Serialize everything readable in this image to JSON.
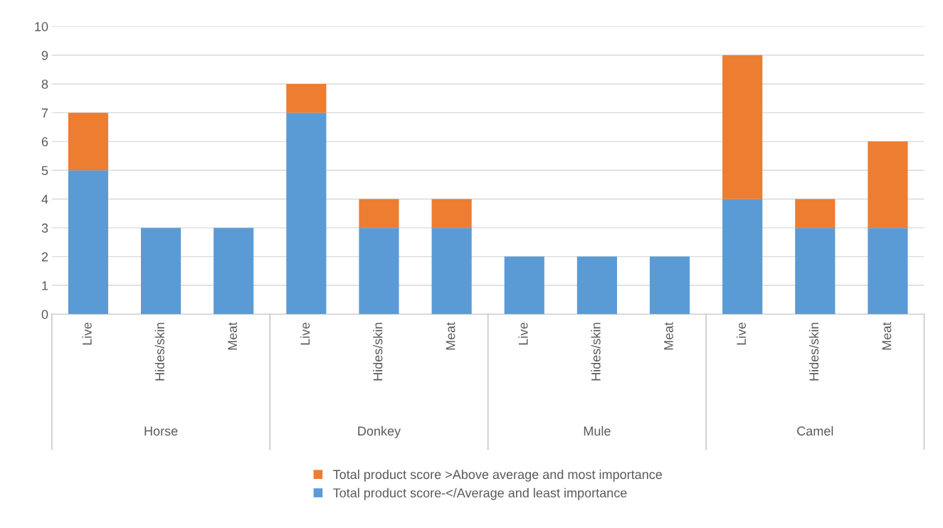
{
  "chart_data": {
    "type": "bar",
    "stacked": true,
    "categories": [
      "Live",
      "Hides/skin",
      "Meat",
      "Live",
      "Hides/skin",
      "Meat",
      "Live",
      "Hides/skin",
      "Meat",
      "Live",
      "Hides/skin",
      "Meat"
    ],
    "series": [
      {
        "name": "Total product score-</Average and least importance",
        "color": "#5b9bd5",
        "values": [
          5,
          3,
          3,
          7,
          3,
          3,
          2,
          2,
          2,
          4,
          3,
          3
        ]
      },
      {
        "name": "Total product score >Above average and most importance",
        "color": "#ed7d31",
        "values": [
          2,
          0,
          0,
          1,
          1,
          1,
          0,
          0,
          0,
          5,
          1,
          3
        ]
      }
    ],
    "annotations": [
      "Horse",
      "Donkey",
      "Mule",
      "Camel"
    ],
    "ylim": [
      0,
      10
    ],
    "yticks": [
      0,
      1,
      2,
      3,
      4,
      5,
      6,
      7,
      8,
      9,
      10
    ],
    "grid": "y",
    "legend": "bottom"
  }
}
